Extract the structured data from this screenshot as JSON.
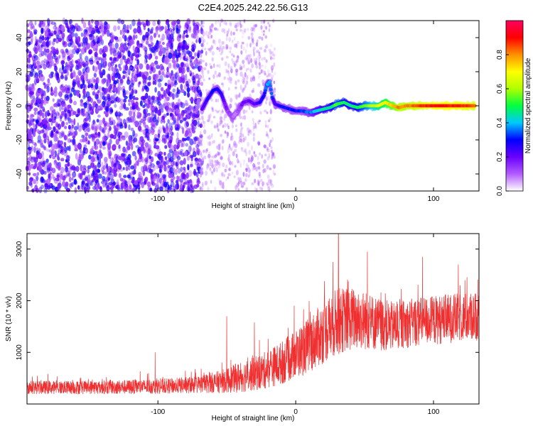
{
  "figure_title": "C2E4.2025.242.22.56.G13",
  "chart_data": [
    {
      "type": "heatmap",
      "title": "C2E4.2025.242.22.56.G13",
      "xlabel": "Height of straight line (km)",
      "ylabel": "Frequency (Hz)",
      "xlim": [
        -195,
        133
      ],
      "ylim": [
        -50,
        50
      ],
      "xticks": [
        -100,
        0,
        100
      ],
      "yticks": [
        -40,
        -20,
        0,
        20,
        40
      ],
      "colorbar": {
        "label": "Normalized spectral amplitude",
        "range": [
          0.0,
          1.0
        ],
        "ticks": [
          "0.0",
          "0.2",
          "0.4",
          "0.6",
          "0.8"
        ],
        "tick_values": [
          0.0,
          0.2,
          0.4,
          0.6,
          0.8
        ],
        "colormap": [
          "#ffffff",
          "#b25cff",
          "#6a00ff",
          "#0000ff",
          "#00c8ff",
          "#00ff40",
          "#b0ff00",
          "#ffff00",
          "#ff9000",
          "#ff0000",
          "#ff0060"
        ]
      },
      "ridge": {
        "description_values": "dominant frequency (Hz) versus height (km)",
        "x": [
          -68,
          -64,
          -60,
          -57,
          -54,
          -50,
          -46,
          -42,
          -38,
          -34,
          -30,
          -26,
          -23,
          -21,
          -19,
          -17,
          -15,
          -12,
          -8,
          -4,
          0,
          5,
          10,
          15,
          20,
          25,
          30,
          35,
          40,
          45,
          50,
          55,
          60,
          65,
          70,
          75,
          80,
          90,
          100,
          110,
          120,
          130
        ],
        "y": [
          -2,
          4,
          9,
          10,
          7,
          -2,
          -7,
          -3,
          2,
          3,
          1,
          2,
          6,
          12,
          14,
          5,
          1,
          0,
          -1,
          -2,
          -3,
          -3,
          -4,
          -3,
          -2,
          -1,
          1,
          2,
          0,
          -1,
          0,
          0,
          0,
          2,
          0,
          -1,
          0,
          0,
          0,
          0,
          0,
          0
        ],
        "amplitude": [
          0.2,
          0.25,
          0.3,
          0.3,
          0.25,
          0.15,
          0.1,
          0.1,
          0.2,
          0.2,
          0.2,
          0.25,
          0.3,
          0.35,
          0.4,
          0.3,
          0.2,
          0.28,
          0.3,
          0.3,
          0.3,
          0.32,
          0.35,
          0.4,
          0.45,
          0.45,
          0.55,
          0.5,
          0.45,
          0.5,
          0.55,
          0.6,
          0.65,
          0.7,
          0.75,
          0.8,
          0.8,
          0.85,
          0.9,
          0.9,
          0.88,
          0.85
        ]
      },
      "noise_floor": {
        "dense_noise_until_km": -70,
        "amplitude_range": [
          0.02,
          0.15
        ]
      }
    },
    {
      "type": "line",
      "title": "",
      "xlabel": "Height of straight line (km)",
      "ylabel": "SNR (10 * v/v)",
      "xlim": [
        -195,
        133
      ],
      "ylim": [
        0,
        3300
      ],
      "xticks": [
        -100,
        0,
        100
      ],
      "yticks": [
        1000,
        2000,
        3000
      ],
      "color": "#f03030",
      "envelope": {
        "x": [
          -195,
          -160,
          -120,
          -90,
          -70,
          -55,
          -40,
          -25,
          -10,
          0,
          10,
          20,
          30,
          40,
          50,
          60,
          70,
          80,
          90,
          100,
          110,
          120,
          133
        ],
        "mean": [
          320,
          320,
          330,
          350,
          380,
          430,
          520,
          620,
          800,
          960,
          1150,
          1380,
          1600,
          1650,
          1620,
          1550,
          1500,
          1550,
          1600,
          1620,
          1650,
          1680,
          1700
        ],
        "spread": [
          130,
          130,
          140,
          150,
          170,
          220,
          300,
          350,
          420,
          480,
          540,
          600,
          650,
          620,
          580,
          520,
          480,
          470,
          480,
          480,
          480,
          480,
          470
        ]
      },
      "peaks": [
        {
          "x": 31,
          "y": 3300
        },
        {
          "x": 52,
          "y": 2950
        },
        {
          "x": 27,
          "y": 2750
        },
        {
          "x": 92,
          "y": 2850
        },
        {
          "x": 118,
          "y": 2700
        },
        {
          "x": -50,
          "y": 1700
        },
        {
          "x": -30,
          "y": 1580
        },
        {
          "x": -102,
          "y": 1000
        }
      ]
    }
  ]
}
